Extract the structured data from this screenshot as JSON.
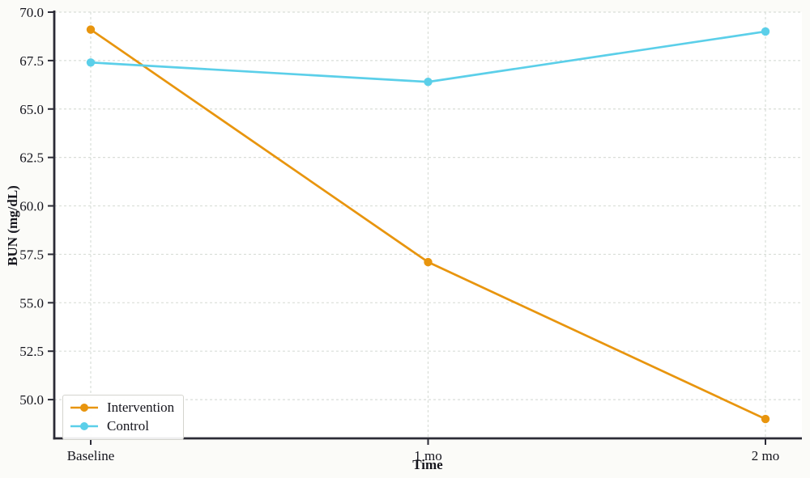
{
  "chart_data": {
    "type": "line",
    "xlabel": "Time",
    "ylabel": "BUN (mg/dL)",
    "categories": [
      "Baseline",
      "1 mo",
      "2 mo"
    ],
    "series": [
      {
        "name": "Intervention",
        "color": "#e8950e",
        "values": [
          69.1,
          57.1,
          49.0
        ]
      },
      {
        "name": "Control",
        "color": "#5bcfe9",
        "values": [
          67.4,
          66.4,
          69.0
        ]
      }
    ],
    "ylim": [
      48,
      70
    ],
    "yticks": [
      50,
      52.5,
      55,
      57.5,
      60,
      62.5,
      65,
      67.5,
      70
    ],
    "ytick_labels": [
      "50.0",
      "52.5",
      "55.0",
      "57.5",
      "60.0",
      "62.5",
      "65.0",
      "67.5",
      "70.0"
    ],
    "grid": "dashed-both-axes",
    "legend_position": "lower-left",
    "marker": "circle"
  },
  "style": {
    "figure_background": "#fbfbf8",
    "plot_background": "#ffffff",
    "spine_color": "#2b2b36",
    "grid_color": "#d9ded8",
    "text_color": "#15151d"
  }
}
